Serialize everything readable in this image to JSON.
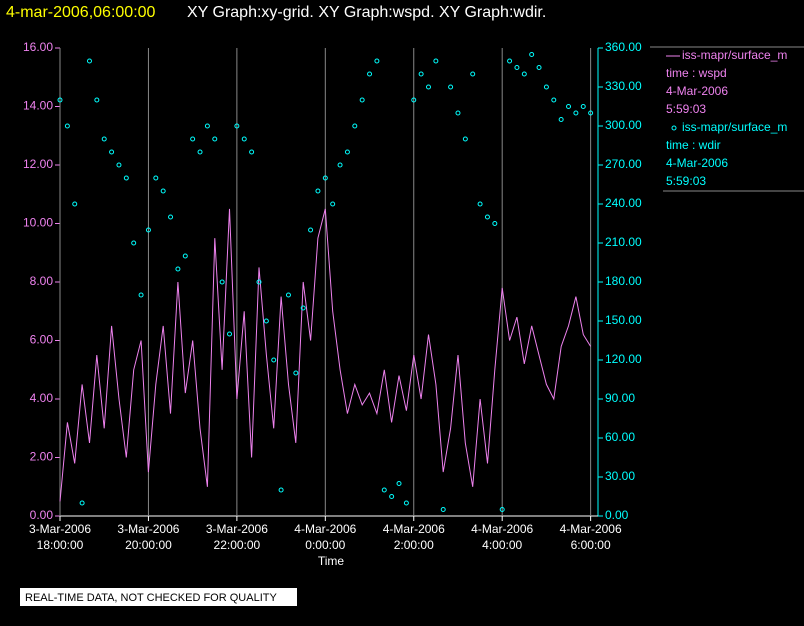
{
  "chart_data": {
    "type": "line",
    "header_time": "4-mar-2006,06:00:00",
    "title": "XY Graph:xy-grid.  XY Graph:wspd.  XY Graph:wdir.",
    "x_label": "Time",
    "note": "REAL-TIME DATA, NOT CHECKED FOR QUALITY",
    "grid": true,
    "xlim": [
      "2006-03-03 18:00",
      "2006-03-04 06:10"
    ],
    "xticks": [
      {
        "value": "2006-03-03 18:00",
        "label": [
          "3-Mar-2006",
          "18:00:00"
        ]
      },
      {
        "value": "2006-03-03 20:00",
        "label": [
          "3-Mar-2006",
          "20:00:00"
        ]
      },
      {
        "value": "2006-03-03 22:00",
        "label": [
          "3-Mar-2006",
          "22:00:00"
        ]
      },
      {
        "value": "2006-03-04 00:00",
        "label": [
          "4-Mar-2006",
          "0:00:00"
        ]
      },
      {
        "value": "2006-03-04 02:00",
        "label": [
          "4-Mar-2006",
          "2:00:00"
        ]
      },
      {
        "value": "2006-03-04 04:00",
        "label": [
          "4-Mar-2006",
          "4:00:00"
        ]
      },
      {
        "value": "2006-03-04 06:00",
        "label": [
          "4-Mar-2006",
          "6:00:00"
        ]
      }
    ],
    "ylim": [
      0,
      16
    ],
    "yticks": [
      {
        "value": 0,
        "label": "0.00"
      },
      {
        "value": 2,
        "label": "2.00"
      },
      {
        "value": 4,
        "label": "4.00"
      },
      {
        "value": 6,
        "label": "6.00"
      },
      {
        "value": 8,
        "label": "8.00"
      },
      {
        "value": 10,
        "label": "10.00"
      },
      {
        "value": 12,
        "label": "12.00"
      },
      {
        "value": 14,
        "label": "14.00"
      },
      {
        "value": 16,
        "label": "16.00"
      }
    ],
    "y2lim": [
      0,
      360
    ],
    "y2ticks": [
      {
        "value": 0,
        "label": "0.00"
      },
      {
        "value": 30,
        "label": "30.00"
      },
      {
        "value": 60,
        "label": "60.00"
      },
      {
        "value": 90,
        "label": "90.00"
      },
      {
        "value": 120,
        "label": "120.00"
      },
      {
        "value": 150,
        "label": "150.00"
      },
      {
        "value": 180,
        "label": "180.00"
      },
      {
        "value": 210,
        "label": "210.00"
      },
      {
        "value": 240,
        "label": "240.00"
      },
      {
        "value": 270,
        "label": "270.00"
      },
      {
        "value": 300,
        "label": "300.00"
      },
      {
        "value": 330,
        "label": "330.00"
      },
      {
        "value": 360,
        "label": "360.00"
      }
    ],
    "x": [
      "2006-03-03 18:00",
      "2006-03-03 18:10",
      "2006-03-03 18:20",
      "2006-03-03 18:30",
      "2006-03-03 18:40",
      "2006-03-03 18:50",
      "2006-03-03 19:00",
      "2006-03-03 19:10",
      "2006-03-03 19:20",
      "2006-03-03 19:30",
      "2006-03-03 19:40",
      "2006-03-03 19:50",
      "2006-03-03 20:00",
      "2006-03-03 20:10",
      "2006-03-03 20:20",
      "2006-03-03 20:30",
      "2006-03-03 20:40",
      "2006-03-03 20:50",
      "2006-03-03 21:00",
      "2006-03-03 21:10",
      "2006-03-03 21:20",
      "2006-03-03 21:30",
      "2006-03-03 21:40",
      "2006-03-03 21:50",
      "2006-03-03 22:00",
      "2006-03-03 22:10",
      "2006-03-03 22:20",
      "2006-03-03 22:30",
      "2006-03-03 22:40",
      "2006-03-03 22:50",
      "2006-03-03 23:00",
      "2006-03-03 23:10",
      "2006-03-03 23:20",
      "2006-03-03 23:30",
      "2006-03-03 23:40",
      "2006-03-03 23:50",
      "2006-03-04 00:00",
      "2006-03-04 00:10",
      "2006-03-04 00:20",
      "2006-03-04 00:30",
      "2006-03-04 00:40",
      "2006-03-04 00:50",
      "2006-03-04 01:00",
      "2006-03-04 01:10",
      "2006-03-04 01:20",
      "2006-03-04 01:30",
      "2006-03-04 01:40",
      "2006-03-04 01:50",
      "2006-03-04 02:00",
      "2006-03-04 02:10",
      "2006-03-04 02:20",
      "2006-03-04 02:30",
      "2006-03-04 02:40",
      "2006-03-04 02:50",
      "2006-03-04 03:00",
      "2006-03-04 03:10",
      "2006-03-04 03:20",
      "2006-03-04 03:30",
      "2006-03-04 03:40",
      "2006-03-04 03:50",
      "2006-03-04 04:00",
      "2006-03-04 04:10",
      "2006-03-04 04:20",
      "2006-03-04 04:30",
      "2006-03-04 04:40",
      "2006-03-04 04:50",
      "2006-03-04 05:00",
      "2006-03-04 05:10",
      "2006-03-04 05:20",
      "2006-03-04 05:30",
      "2006-03-04 05:40",
      "2006-03-04 05:50",
      "2006-03-04 06:00"
    ],
    "series": [
      {
        "name": "iss-mapr/surface_m",
        "legend_lines": [
          "time : wspd",
          "4-Mar-2006",
          "5:59:03"
        ],
        "color": "#ee82ee",
        "style": "line",
        "axis": "y",
        "values": [
          0.5,
          3.2,
          1.8,
          4.5,
          2.5,
          5.5,
          3.0,
          6.5,
          4.0,
          2.0,
          5.0,
          6.0,
          1.5,
          4.5,
          6.5,
          3.5,
          8.0,
          4.2,
          6.0,
          3.0,
          1.0,
          9.5,
          5.0,
          10.5,
          4.0,
          7.0,
          2.0,
          8.5,
          5.5,
          3.0,
          7.5,
          4.5,
          2.5,
          8.0,
          6.0,
          9.5,
          10.5,
          7.0,
          5.0,
          3.5,
          4.5,
          3.8,
          4.2,
          3.5,
          5.0,
          3.2,
          4.8,
          3.6,
          5.5,
          4.0,
          6.2,
          4.5,
          1.5,
          3.0,
          5.5,
          2.5,
          1.0,
          4.0,
          1.8,
          5.0,
          7.8,
          6.0,
          6.8,
          5.2,
          6.5,
          5.5,
          4.5,
          4.0,
          5.8,
          6.5,
          7.5,
          6.2,
          5.8
        ]
      },
      {
        "name": "iss-mapr/surface_m",
        "legend_lines": [
          "time : wdir",
          "4-Mar-2006",
          "5:59:03"
        ],
        "color": "#00ffff",
        "style": "scatter",
        "axis": "y2",
        "values": [
          320,
          300,
          240,
          10,
          350,
          320,
          290,
          280,
          270,
          260,
          210,
          170,
          220,
          260,
          250,
          230,
          190,
          200,
          290,
          280,
          300,
          290,
          180,
          140,
          300,
          290,
          280,
          180,
          150,
          120,
          20,
          170,
          110,
          160,
          220,
          250,
          260,
          240,
          270,
          280,
          300,
          320,
          340,
          350,
          20,
          15,
          25,
          10,
          320,
          340,
          330,
          350,
          5,
          330,
          310,
          290,
          340,
          240,
          230,
          225,
          5,
          350,
          345,
          340,
          355,
          345,
          330,
          320,
          305,
          315,
          310,
          315,
          310
        ]
      }
    ]
  }
}
